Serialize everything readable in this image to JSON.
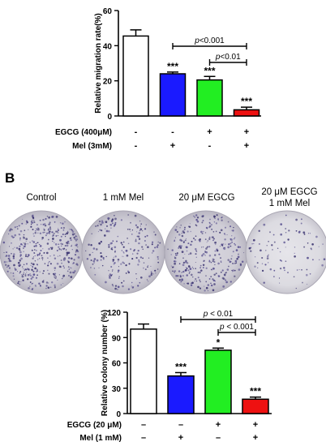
{
  "panel_b_label": "B",
  "dish_labels": [
    "Control",
    "1 mM Mel",
    "20 μM EGCG",
    "20 μM EGCG\n1 mM Mel"
  ],
  "chart_data": [
    {
      "type": "bar",
      "ylabel": "Relative migration rate(%)",
      "ylim": [
        0,
        60
      ],
      "yticks": [
        "0",
        "20",
        "40",
        "60"
      ],
      "categories": [
        "EGCG(-) Mel(-)",
        "EGCG(-) Mel(+)",
        "EGCG(+) Mel(-)",
        "EGCG(+) Mel(+)"
      ],
      "values": [
        45.5,
        24.0,
        20.5,
        3.5
      ],
      "errors": [
        3.5,
        1.0,
        2.0,
        1.5
      ],
      "bar_colors": [
        "#ffffff",
        "#1a1aff",
        "#22ee22",
        "#ee1111"
      ],
      "significance": [
        "",
        "***",
        "***",
        "***"
      ],
      "treatment_rows": [
        {
          "label": "EGCG (400μM)",
          "marks": [
            "-",
            "-",
            "+",
            "+"
          ]
        },
        {
          "label": "Mel (3mM)",
          "marks": [
            "-",
            "+",
            "-",
            "+"
          ]
        }
      ],
      "comparisons": [
        {
          "from": 1,
          "to": 3,
          "label_prefix": "p",
          "label_rest": "<0.001"
        },
        {
          "from": 2,
          "to": 3,
          "label_prefix": "p",
          "label_rest": "<0.01"
        }
      ]
    },
    {
      "type": "bar",
      "ylabel": "Relative colony number (%)",
      "ylim": [
        0,
        120
      ],
      "yticks": [
        "0",
        "30",
        "60",
        "90",
        "120"
      ],
      "categories": [
        "EGCG(-) Mel(-)",
        "EGCG(-) Mel(+)",
        "EGCG(+) Mel(-)",
        "EGCG(+) Mel(+)"
      ],
      "values": [
        100,
        44.5,
        75,
        17
      ],
      "errors": [
        6,
        4,
        2.5,
        2.5
      ],
      "bar_colors": [
        "#ffffff",
        "#1a1aff",
        "#22ee22",
        "#ee1111"
      ],
      "significance": [
        "",
        "***",
        "*",
        "***"
      ],
      "treatment_rows": [
        {
          "label": "EGCG (20 μM)",
          "marks": [
            "–",
            "–",
            "+",
            "+"
          ]
        },
        {
          "label": "Mel (1 mM)",
          "marks": [
            "–",
            "+",
            "–",
            "+"
          ]
        }
      ],
      "comparisons": [
        {
          "from": 1,
          "to": 3,
          "label_prefix": "p",
          "label_rest": " < 0.01"
        },
        {
          "from": 2,
          "to": 3,
          "label_prefix": "p",
          "label_rest": " < 0.001"
        }
      ]
    }
  ]
}
